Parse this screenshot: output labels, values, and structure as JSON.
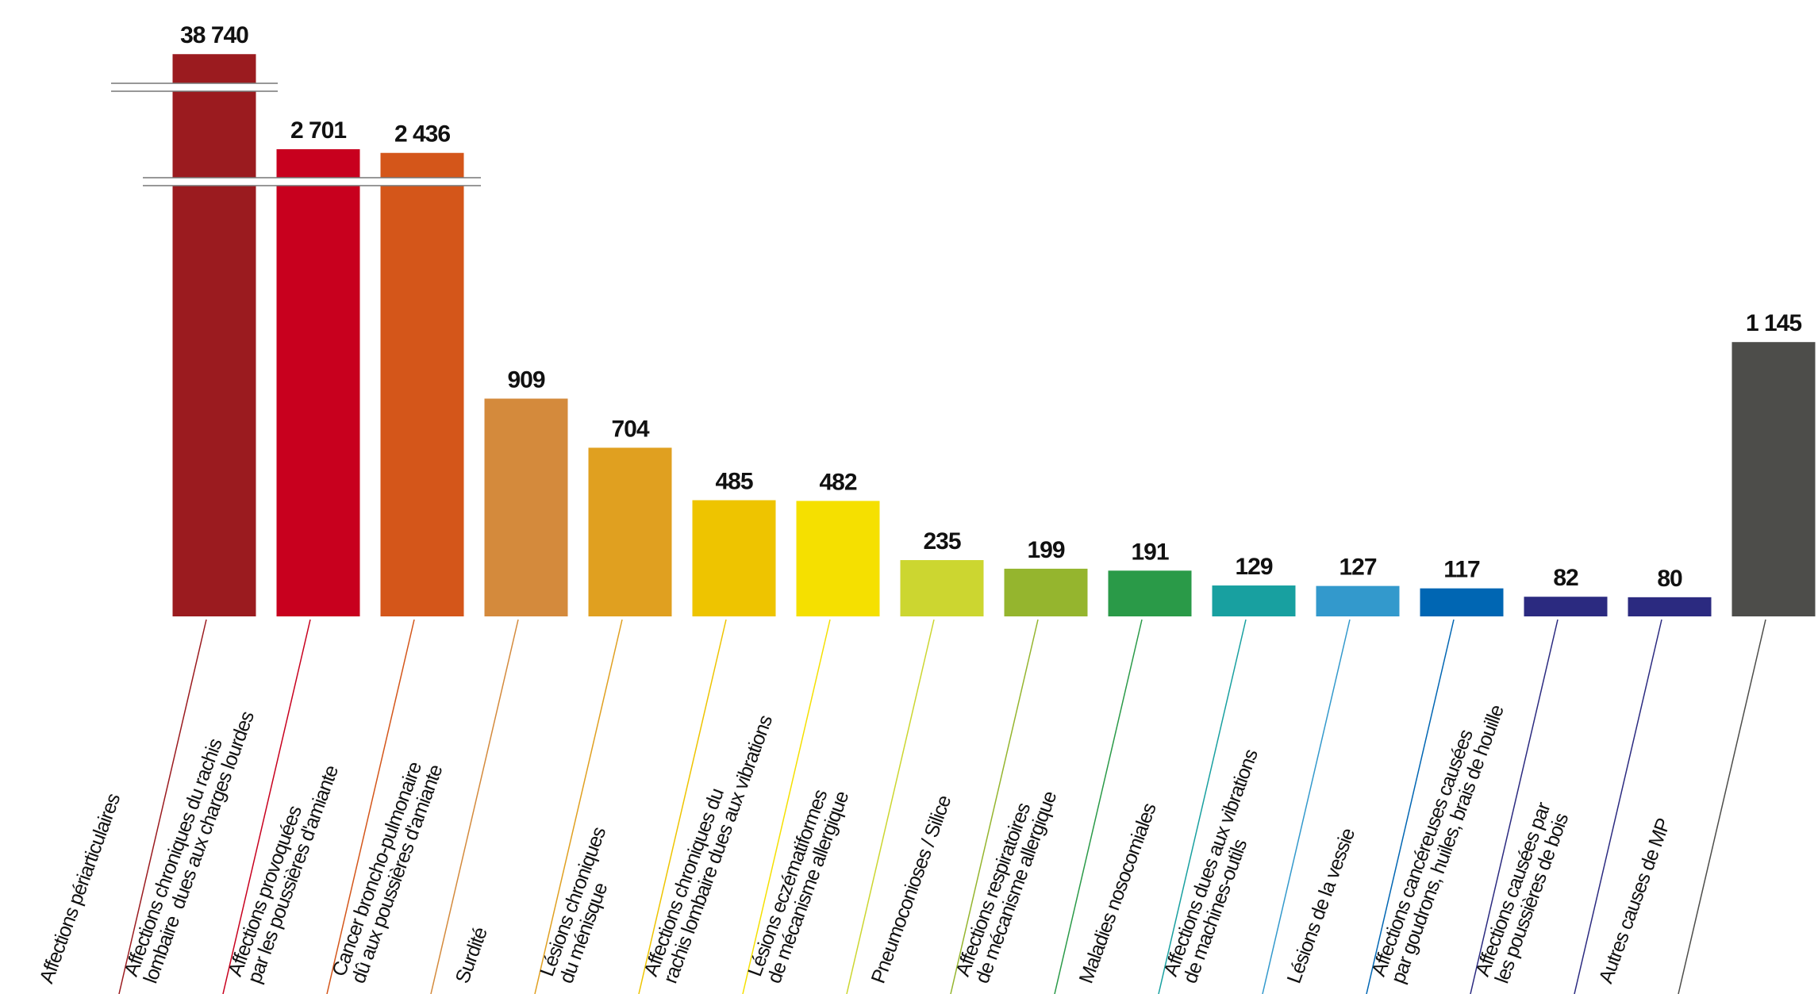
{
  "chart_data": {
    "type": "bar",
    "categories": [
      "Affections périarticulaires",
      "Affections chroniques du rachis\nlombaire  dues aux charges lourdes",
      "Affections provoquées\npar les poussières d'amiante",
      "Cancer broncho-pulmonaire\ndû aux poussières d'amiante",
      "Surdité",
      "Lésions chroniques\ndu ménisque",
      "Affections chroniques du\nrachis lombaire dues aux vibrations",
      "Lésions eczématiformes\nde mécanisme allergique",
      "Pneumoconioses / Silice",
      "Affections respiratoires\nde mécanisme allergique",
      "Maladies nosocomiales",
      "Affections dues aux vibrations\nde machines-outils",
      "Lésions de la vessie",
      "Affections cancéreuses causées\npar goudrons, huiles, brais de houille",
      "Affections causées par\nles poussières de bois",
      "Autres causes de MP"
    ],
    "values": [
      38740,
      2701,
      2436,
      909,
      704,
      485,
      482,
      235,
      199,
      191,
      129,
      127,
      117,
      82,
      80,
      1145
    ],
    "value_labels": [
      "38 740",
      "2 701",
      "2 436",
      "909",
      "704",
      "485",
      "482",
      "235",
      "199",
      "191",
      "129",
      "127",
      "117",
      "82",
      "80",
      "1 145"
    ],
    "colors": [
      "#9b1b1f",
      "#c8001e",
      "#d4561a",
      "#d48a3c",
      "#e0a020",
      "#eec400",
      "#f5e000",
      "#ccd630",
      "#95b52e",
      "#2a9a48",
      "#18a0a0",
      "#3399cc",
      "#0066b3",
      "#2b2a80",
      "#2b2a80",
      "#4d4d4a"
    ],
    "ylim": [
      0,
      40000
    ]
  }
}
